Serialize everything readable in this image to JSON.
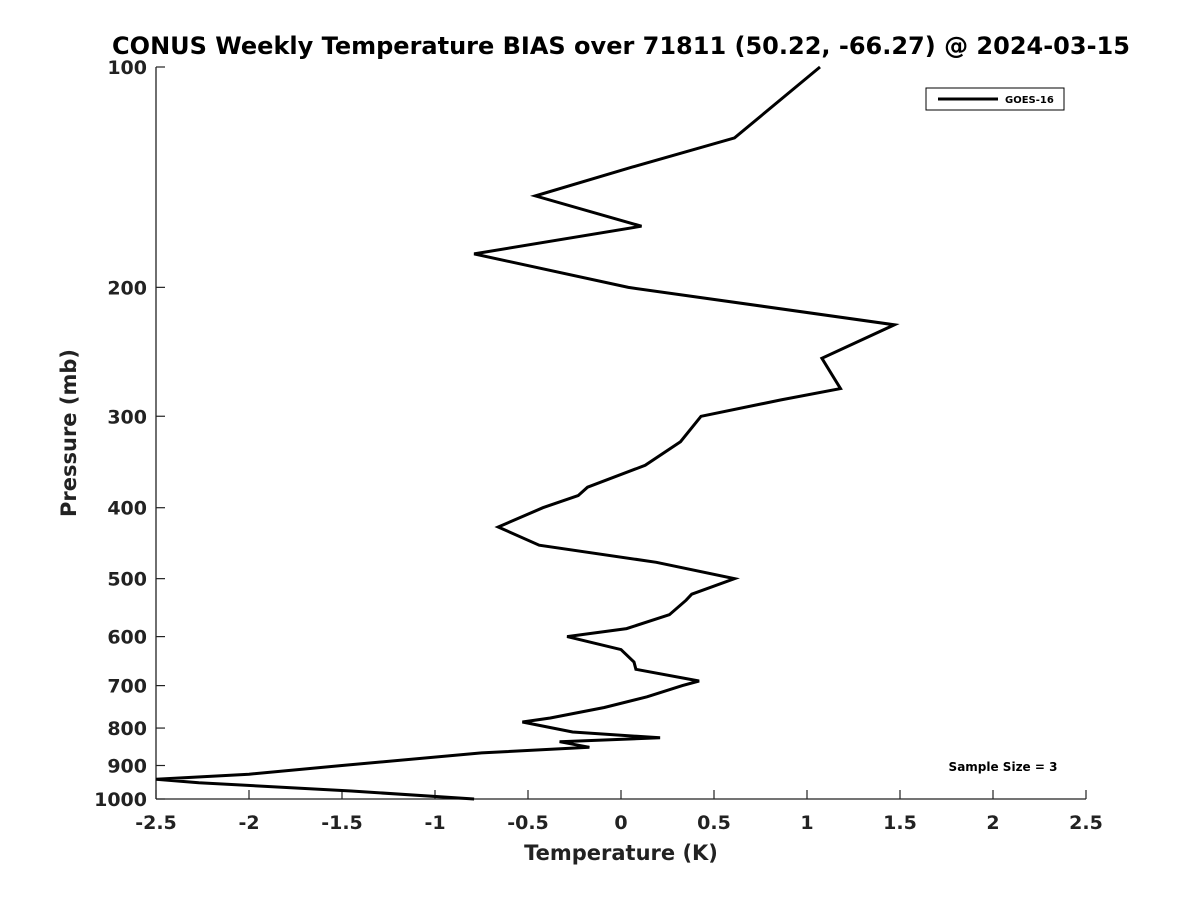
{
  "chart_data": {
    "type": "line",
    "title": "CONUS Weekly Temperature BIAS over 71811 (50.22, -66.27) @ 2024-03-15",
    "xlabel": "Temperature (K)",
    "ylabel": "Pressure (mb)",
    "xlim": [
      -2.5,
      2.5
    ],
    "ylim": [
      1000,
      100
    ],
    "yscale": "log",
    "y_reversed": true,
    "grid": false,
    "legend_position": "top-right",
    "x_ticks": [
      "-2.5",
      "-2",
      "-1.5",
      "-1",
      "-0.5",
      "0",
      "0.5",
      "1",
      "1.5",
      "2",
      "2.5"
    ],
    "x_tick_values": [
      -2.5,
      -2,
      -1.5,
      -1,
      -0.5,
      0,
      0.5,
      1,
      1.5,
      2,
      2.5
    ],
    "y_ticks": [
      "100",
      "200",
      "300",
      "400",
      "500",
      "600",
      "700",
      "800",
      "900",
      "1000"
    ],
    "y_tick_values": [
      100,
      200,
      300,
      400,
      500,
      600,
      700,
      800,
      900,
      1000
    ],
    "series": [
      {
        "name": "GOES-16",
        "color": "#000000",
        "points": [
          {
            "x": 1.07,
            "p": 100
          },
          {
            "x": 0.61,
            "p": 125
          },
          {
            "x": 0.06,
            "p": 137
          },
          {
            "x": -0.46,
            "p": 150
          },
          {
            "x": 0.11,
            "p": 165
          },
          {
            "x": -0.79,
            "p": 180
          },
          {
            "x": 0.04,
            "p": 200
          },
          {
            "x": 1.47,
            "p": 225
          },
          {
            "x": 1.08,
            "p": 250
          },
          {
            "x": 1.18,
            "p": 275
          },
          {
            "x": 0.86,
            "p": 285
          },
          {
            "x": 0.43,
            "p": 300
          },
          {
            "x": 0.32,
            "p": 325
          },
          {
            "x": 0.13,
            "p": 350
          },
          {
            "x": -0.18,
            "p": 375
          },
          {
            "x": -0.23,
            "p": 385
          },
          {
            "x": -0.42,
            "p": 400
          },
          {
            "x": -0.66,
            "p": 425
          },
          {
            "x": -0.44,
            "p": 450
          },
          {
            "x": 0.19,
            "p": 475
          },
          {
            "x": 0.61,
            "p": 500
          },
          {
            "x": 0.38,
            "p": 525
          },
          {
            "x": 0.35,
            "p": 535
          },
          {
            "x": 0.26,
            "p": 560
          },
          {
            "x": 0.03,
            "p": 585
          },
          {
            "x": -0.29,
            "p": 600
          },
          {
            "x": 0.0,
            "p": 625
          },
          {
            "x": 0.07,
            "p": 650
          },
          {
            "x": 0.08,
            "p": 665
          },
          {
            "x": 0.42,
            "p": 690
          },
          {
            "x": 0.33,
            "p": 700
          },
          {
            "x": 0.14,
            "p": 725
          },
          {
            "x": -0.09,
            "p": 750
          },
          {
            "x": -0.38,
            "p": 775
          },
          {
            "x": -0.53,
            "p": 785
          },
          {
            "x": -0.26,
            "p": 810
          },
          {
            "x": 0.21,
            "p": 825
          },
          {
            "x": -0.33,
            "p": 835
          },
          {
            "x": -0.17,
            "p": 850
          },
          {
            "x": -0.75,
            "p": 865
          },
          {
            "x": -1.5,
            "p": 900
          },
          {
            "x": -2.0,
            "p": 925
          },
          {
            "x": -2.5,
            "p": 940
          },
          {
            "x": -2.27,
            "p": 950
          },
          {
            "x": -1.45,
            "p": 975
          },
          {
            "x": -0.79,
            "p": 1000
          }
        ]
      }
    ],
    "legend": {
      "entries": [
        "GOES-16"
      ]
    },
    "annotation": "Sample Size = 3"
  }
}
